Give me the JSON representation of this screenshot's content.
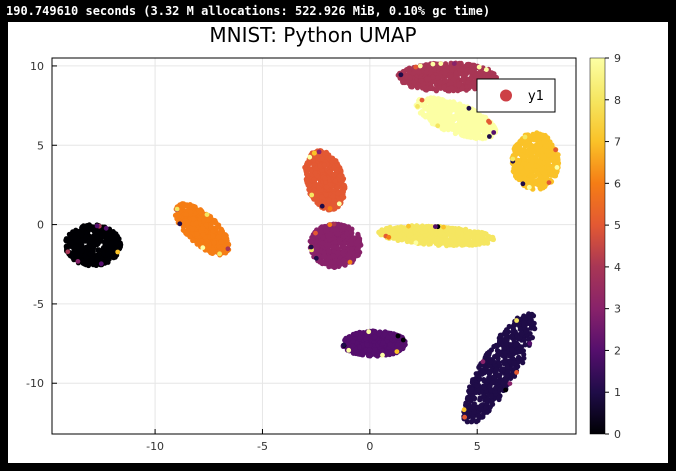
{
  "console": {
    "timing_text": "190.749610 seconds (3.32 M allocations: 522.926 MiB, 0.10% gc time)"
  },
  "colors": {
    "background": "#000000",
    "plot_background": "#ffffff",
    "legend_marker": "#cd3f45",
    "colormap": [
      "#000004",
      "#1f0c48",
      "#550f6d",
      "#88226a",
      "#a83655",
      "#e35933",
      "#f57d15",
      "#fac228",
      "#f5e661",
      "#fcffa4"
    ]
  },
  "chart_data": {
    "type": "scatter",
    "title": "MNIST: Python UMAP",
    "xlabel": "",
    "ylabel": "",
    "xlim": [
      -14.8,
      9.6
    ],
    "ylim": [
      -13.2,
      10.5
    ],
    "x_ticks": [
      -10,
      -5,
      0,
      5
    ],
    "x_tick_labels": [
      "-10",
      "-5",
      "0",
      "5"
    ],
    "y_ticks": [
      -10,
      -5,
      0,
      5,
      10
    ],
    "y_tick_labels": [
      "-10",
      "-5",
      "0",
      "5",
      "10"
    ],
    "grid": true,
    "legend": {
      "position": "top-right",
      "entries": [
        "y1"
      ]
    },
    "colorbar": {
      "range": [
        0,
        9
      ],
      "ticks": [
        0,
        1,
        2,
        3,
        4,
        5,
        6,
        7,
        8,
        9
      ],
      "tick_labels": [
        "0",
        "1",
        "2",
        "3",
        "4",
        "5",
        "6",
        "7",
        "8",
        "9"
      ],
      "colormap": "inferno"
    },
    "clusters": [
      {
        "digit": 0,
        "cx": -12.9,
        "cy": -1.3,
        "rx": 1.3,
        "ry": 1.3,
        "angle": 0
      },
      {
        "digit": 1,
        "cx": 6.0,
        "cy": -9.1,
        "rx": 3.8,
        "ry": 0.9,
        "angle": 67
      },
      {
        "digit": 2,
        "cx": 0.2,
        "cy": -7.5,
        "rx": 1.5,
        "ry": 0.8,
        "angle": 0
      },
      {
        "digit": 3,
        "cx": -1.6,
        "cy": -1.3,
        "rx": 1.2,
        "ry": 1.4,
        "angle": 0
      },
      {
        "digit": 4,
        "cx": 3.6,
        "cy": 9.3,
        "rx": 2.3,
        "ry": 0.9,
        "angle": 0
      },
      {
        "digit": 5,
        "cx": -2.1,
        "cy": 2.8,
        "rx": 0.9,
        "ry": 1.9,
        "angle": 10
      },
      {
        "digit": 6,
        "cx": -7.8,
        "cy": -0.3,
        "rx": 1.9,
        "ry": 0.8,
        "angle": -55
      },
      {
        "digit": 7,
        "cx": 7.7,
        "cy": 4.0,
        "rx": 1.1,
        "ry": 1.8,
        "angle": 0
      },
      {
        "digit": 8,
        "cx": 3.1,
        "cy": -0.7,
        "rx": 2.7,
        "ry": 0.6,
        "angle": -5
      },
      {
        "digit": 9,
        "cx": 4.0,
        "cy": 6.7,
        "rx": 2.1,
        "ry": 0.9,
        "angle": -30
      }
    ]
  }
}
